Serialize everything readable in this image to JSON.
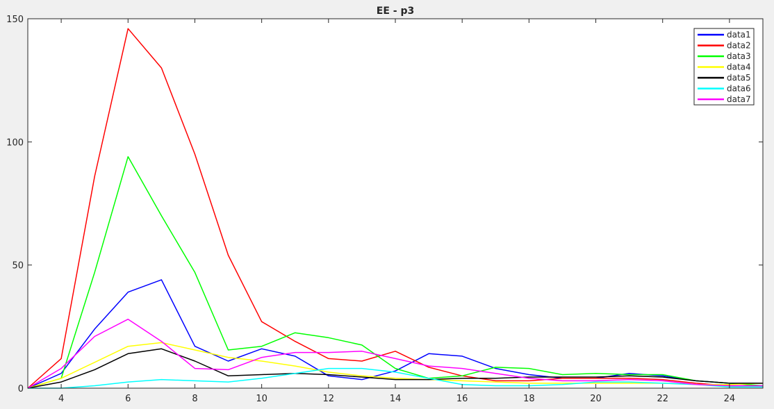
{
  "chart_data": {
    "type": "line",
    "title": "EE - p3",
    "xlabel": "",
    "ylabel": "",
    "xlim": [
      3,
      25
    ],
    "ylim": [
      0,
      150
    ],
    "xticks": [
      4,
      6,
      8,
      10,
      12,
      14,
      16,
      18,
      20,
      22,
      24
    ],
    "yticks": [
      0,
      50,
      100,
      150
    ],
    "grid": false,
    "legend_position": "top-right",
    "x": [
      3,
      4,
      5,
      6,
      7,
      8,
      9,
      10,
      11,
      12,
      13,
      14,
      15,
      16,
      17,
      18,
      19,
      20,
      21,
      22,
      23,
      24,
      25
    ],
    "series": [
      {
        "name": "data1",
        "color": "#0000ff",
        "values": [
          0,
          6,
          24,
          39,
          44,
          17,
          11,
          16,
          13,
          5,
          3.5,
          7,
          14,
          13,
          8,
          5.5,
          4,
          4,
          6,
          5,
          3,
          2,
          2
        ]
      },
      {
        "name": "data2",
        "color": "#ff0000",
        "values": [
          0,
          12,
          86,
          146,
          130,
          95,
          54,
          27,
          19,
          12,
          11,
          15,
          8.5,
          5,
          3,
          3,
          4,
          4,
          4,
          3.5,
          2,
          1,
          1
        ]
      },
      {
        "name": "data3",
        "color": "#00ff00",
        "values": [
          0,
          4,
          47,
          94,
          70,
          47,
          15.5,
          17,
          22.5,
          20.5,
          17.5,
          8,
          4,
          5,
          8.5,
          8,
          5.5,
          6,
          5.5,
          5.5,
          3,
          2,
          1
        ]
      },
      {
        "name": "data4",
        "color": "#ffff00",
        "values": [
          0,
          4,
          10.5,
          17,
          18.5,
          15.5,
          12.5,
          11,
          9,
          6.5,
          5,
          4,
          3.5,
          3,
          2.5,
          2,
          2,
          2,
          2,
          2,
          1.5,
          1.5,
          2
        ]
      },
      {
        "name": "data5",
        "color": "#000000",
        "values": [
          0,
          2.5,
          7.5,
          14,
          16,
          11,
          5,
          5.5,
          6,
          5.5,
          4.5,
          3.5,
          3.5,
          4,
          4,
          4.5,
          4.5,
          4.5,
          5,
          4.5,
          3,
          2,
          2
        ]
      },
      {
        "name": "data6",
        "color": "#00ffff",
        "values": [
          0,
          0,
          1,
          2.5,
          3.5,
          3,
          2.5,
          4,
          6,
          8,
          8,
          6.5,
          4,
          1.5,
          1,
          1,
          1.5,
          2.5,
          2.5,
          2,
          1.5,
          0.5,
          0.5
        ]
      },
      {
        "name": "data7",
        "color": "#ff00ff",
        "values": [
          0,
          8,
          21,
          28,
          19,
          8,
          7.5,
          12.5,
          14.5,
          14.5,
          15,
          12,
          9,
          8,
          6,
          4,
          3,
          3,
          3.5,
          3,
          1.5,
          1,
          1
        ]
      }
    ]
  }
}
